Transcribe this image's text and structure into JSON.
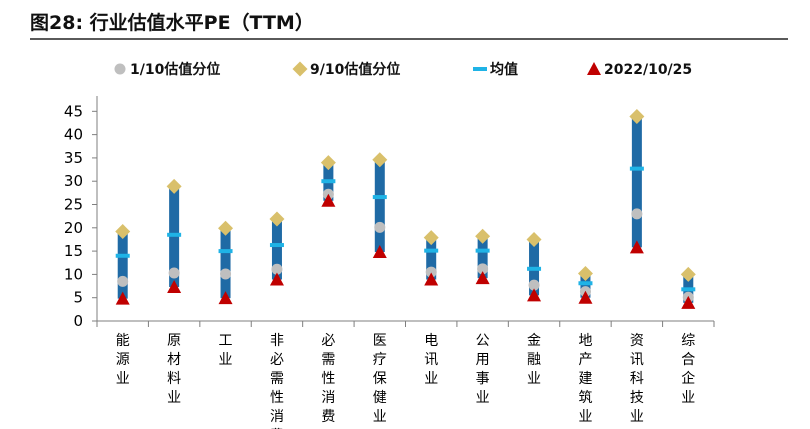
{
  "figure": {
    "title": "图28: 行业估值水平PE（TTM）"
  },
  "chart_data": {
    "type": "range-marker",
    "categories": [
      "能源业",
      "原材料业",
      "工业",
      "非必需性消费",
      "必需性消费",
      "医疗保健业",
      "电讯业",
      "公用事业",
      "金融业",
      "地产建筑业",
      "资讯科技业",
      "综合企业"
    ],
    "series": [
      {
        "name": "1/10估值分位",
        "marker": "circle",
        "values": [
          8.5,
          10.3,
          10.1,
          11.1,
          27.2,
          20.1,
          10.5,
          11.2,
          7.7,
          6.3,
          23.0,
          5.1
        ]
      },
      {
        "name": "9/10估值分位",
        "marker": "diamond",
        "values": [
          19.2,
          28.9,
          19.9,
          21.9,
          34.0,
          34.6,
          17.9,
          18.2,
          17.5,
          10.2,
          43.9,
          10.0
        ]
      },
      {
        "name": "均值",
        "marker": "dash",
        "values": [
          14.0,
          18.5,
          15.0,
          16.3,
          30.0,
          26.6,
          15.1,
          15.1,
          11.2,
          8.1,
          32.7,
          6.8
        ]
      },
      {
        "name": "2022/10/25",
        "marker": "triangle",
        "values": [
          4.8,
          7.3,
          4.9,
          8.9,
          25.8,
          14.8,
          8.9,
          9.2,
          5.5,
          5.0,
          15.8,
          3.9
        ]
      }
    ],
    "yticks": [
      0,
      5,
      10,
      15,
      20,
      25,
      30,
      35,
      40,
      45
    ],
    "ylim": [
      0,
      47
    ],
    "legend_position": "top",
    "grid": false,
    "colors": {
      "bar": "#1f6aa5",
      "circle": "#bfbfbf",
      "diamond": "#d9c06b",
      "dash": "#1fb3e6",
      "triangle": "#c00000",
      "axis": "#7f7f7f"
    }
  }
}
